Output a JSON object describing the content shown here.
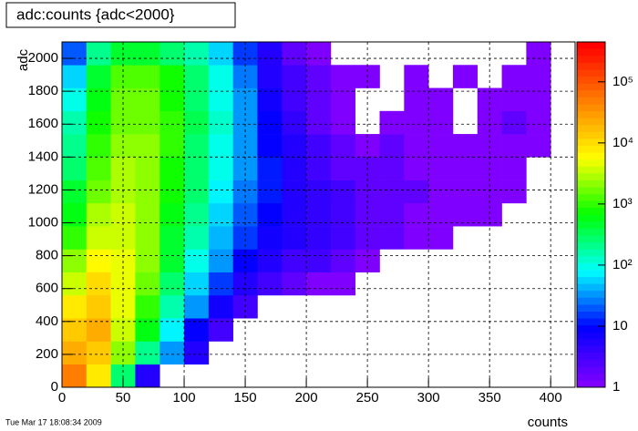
{
  "chart_data": {
    "type": "heatmap",
    "title": "adc:counts {adc<2000}",
    "x_label": "counts",
    "y_label": "adc",
    "footer": "Tue Mar 17 18:08:34 2009",
    "x_bins": [
      0,
      20,
      40,
      60,
      80,
      100,
      120,
      140,
      160,
      180,
      200,
      220,
      240,
      260,
      280,
      300,
      320,
      340,
      360,
      380,
      400
    ],
    "y_bins": [
      0,
      140,
      280,
      420,
      560,
      700,
      840,
      980,
      1120,
      1260,
      1400,
      1540,
      1680,
      1820,
      1960,
      2100
    ],
    "values": [
      [
        50000,
        8000,
        300,
        5,
        null,
        null,
        null,
        null,
        null,
        null,
        null,
        null,
        null,
        null,
        null,
        null,
        null,
        null,
        null,
        null
      ],
      [
        20000,
        15000,
        2000,
        200,
        30,
        5,
        null,
        null,
        null,
        null,
        null,
        null,
        null,
        null,
        null,
        null,
        null,
        null,
        null,
        null
      ],
      [
        15000,
        20000,
        4000,
        600,
        80,
        10,
        3,
        null,
        null,
        null,
        null,
        null,
        null,
        null,
        null,
        null,
        null,
        null,
        null,
        null
      ],
      [
        8000,
        15000,
        5000,
        1000,
        150,
        30,
        8,
        3,
        null,
        null,
        null,
        null,
        null,
        null,
        null,
        null,
        null,
        null,
        null,
        null
      ],
      [
        4000,
        10000,
        5000,
        1500,
        300,
        60,
        15,
        6,
        3,
        2,
        1,
        1,
        null,
        null,
        null,
        null,
        null,
        null,
        null,
        null
      ],
      [
        2000,
        6000,
        5000,
        2000,
        400,
        100,
        30,
        10,
        5,
        3,
        3,
        2,
        1,
        null,
        null,
        null,
        null,
        null,
        null,
        null
      ],
      [
        1000,
        4000,
        4000,
        2000,
        500,
        150,
        40,
        15,
        8,
        5,
        4,
        3,
        2,
        2,
        1,
        1,
        null,
        null,
        null,
        null
      ],
      [
        600,
        2500,
        3500,
        2000,
        600,
        200,
        60,
        20,
        10,
        6,
        4,
        3,
        2,
        2,
        1,
        1,
        1,
        1,
        null,
        null
      ],
      [
        400,
        1500,
        3000,
        2000,
        700,
        250,
        80,
        25,
        12,
        6,
        4,
        3,
        2,
        2,
        2,
        1,
        1,
        1,
        1,
        null
      ],
      [
        300,
        1200,
        2500,
        2000,
        800,
        300,
        100,
        30,
        12,
        6,
        3,
        2,
        2,
        2,
        1,
        1,
        1,
        1,
        1,
        null
      ],
      [
        200,
        900,
        2000,
        2000,
        900,
        300,
        100,
        30,
        10,
        5,
        3,
        2,
        1,
        2,
        1,
        1,
        1,
        1,
        1,
        1
      ],
      [
        150,
        700,
        1800,
        1800,
        900,
        350,
        120,
        30,
        10,
        4,
        2,
        1,
        null,
        1,
        1,
        1,
        null,
        1,
        2,
        1
      ],
      [
        100,
        600,
        1500,
        1500,
        800,
        300,
        100,
        30,
        8,
        3,
        2,
        1,
        null,
        null,
        1,
        1,
        null,
        1,
        1,
        1
      ],
      [
        60,
        500,
        1200,
        1200,
        700,
        250,
        90,
        25,
        6,
        3,
        2,
        1,
        1,
        null,
        1,
        null,
        1,
        null,
        1,
        1
      ],
      [
        20,
        200,
        500,
        500,
        300,
        150,
        60,
        15,
        5,
        2,
        1,
        null,
        null,
        null,
        null,
        null,
        null,
        null,
        null,
        1
      ]
    ],
    "xlim": [
      0,
      420
    ],
    "xticks": [
      0,
      50,
      100,
      150,
      200,
      250,
      300,
      350,
      400
    ],
    "ylim": [
      0,
      2100
    ],
    "yticks": [
      0,
      200,
      400,
      600,
      800,
      1000,
      1200,
      1400,
      1600,
      1800,
      2000
    ],
    "zlim": [
      1,
      450000
    ],
    "zscale": "log",
    "zticks": [
      1,
      10,
      {
        "value": 100,
        "label": "10²"
      },
      {
        "value": 1000,
        "label": "10³"
      },
      {
        "value": 10000,
        "label": "10⁴"
      },
      {
        "value": 100000,
        "label": "10⁵"
      }
    ],
    "palette": [
      "#7f00ff",
      "#0000ff",
      "#00ffff",
      "#00ff00",
      "#ffff00",
      "#ff8000",
      "#ff0000"
    ],
    "grid": true
  }
}
